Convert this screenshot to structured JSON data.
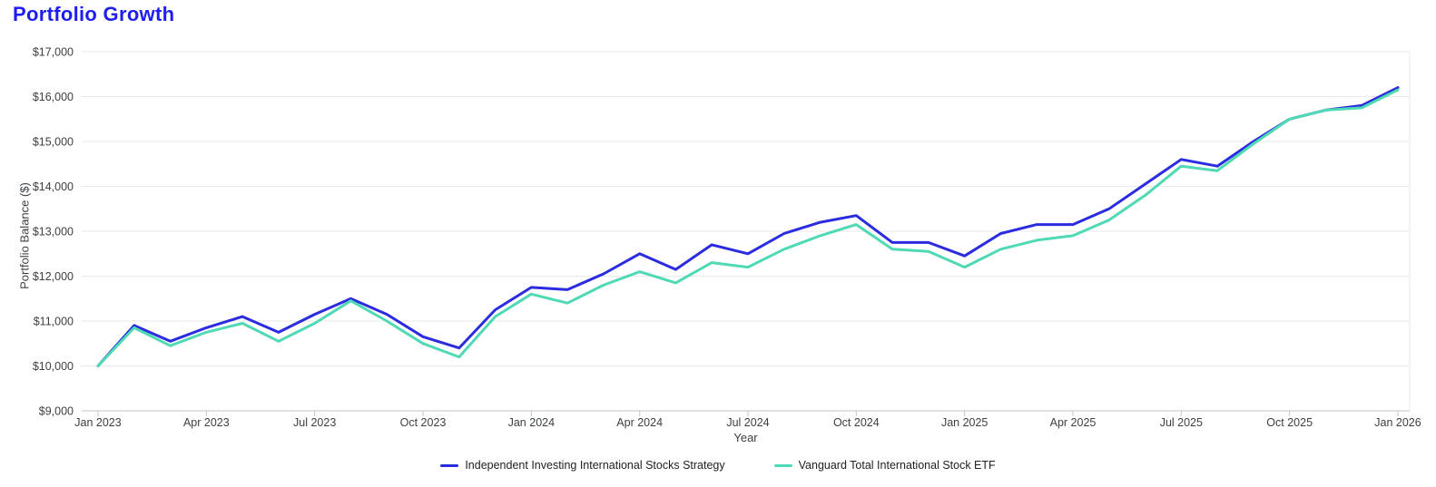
{
  "page": {
    "title": "Portfolio Growth"
  },
  "colors": {
    "title_accent": "#1e1ef2",
    "series_independent": "#2b2bdf",
    "series_vanguard": "#4fd9b5"
  },
  "chart_data": {
    "type": "line",
    "title": "Portfolio Growth",
    "xlabel": "Year",
    "ylabel": "Portfolio Balance ($)",
    "ylim": [
      9000,
      17000
    ],
    "grid": true,
    "legend_position": "bottom",
    "x": [
      "Jan 2023",
      "Feb 2023",
      "Mar 2023",
      "Apr 2023",
      "May 2023",
      "Jun 2023",
      "Jul 2023",
      "Aug 2023",
      "Sep 2023",
      "Oct 2023",
      "Nov 2023",
      "Dec 2023",
      "Jan 2024",
      "Feb 2024",
      "Mar 2024",
      "Apr 2024",
      "May 2024",
      "Jun 2024",
      "Jul 2024",
      "Aug 2024",
      "Sep 2024",
      "Oct 2024",
      "Nov 2024",
      "Dec 2024",
      "Jan 2025",
      "Feb 2025",
      "Mar 2025",
      "Apr 2025",
      "May 2025",
      "Jun 2025",
      "Jul 2025",
      "Aug 2025",
      "Sep 2025",
      "Oct 2025",
      "Nov 2025",
      "Dec 2025",
      "Jan 2026"
    ],
    "x_tick_labels": [
      "Jan 2023",
      "Apr 2023",
      "Jul 2023",
      "Oct 2023",
      "Jan 2024",
      "Apr 2024",
      "Jul 2024",
      "Oct 2024",
      "Jan 2025",
      "Apr 2025",
      "Jul 2025",
      "Oct 2025",
      "Jan 2026"
    ],
    "y_ticks": [
      {
        "value": 9000,
        "label": "$9,000"
      },
      {
        "value": 10000,
        "label": "$10,000"
      },
      {
        "value": 11000,
        "label": "$11,000"
      },
      {
        "value": 12000,
        "label": "$12,000"
      },
      {
        "value": 13000,
        "label": "$13,000"
      },
      {
        "value": 14000,
        "label": "$14,000"
      },
      {
        "value": 15000,
        "label": "$15,000"
      },
      {
        "value": 16000,
        "label": "$16,000"
      },
      {
        "value": 17000,
        "label": "$17,000"
      }
    ],
    "series": [
      {
        "name": "Independent Investing International Stocks Strategy",
        "color": "#2b2bdf",
        "values": [
          10000,
          10900,
          10550,
          10850,
          11100,
          10750,
          11150,
          11500,
          11150,
          10650,
          10400,
          11250,
          11750,
          11700,
          12050,
          12500,
          12150,
          12700,
          12500,
          12950,
          13200,
          13350,
          12750,
          12750,
          12450,
          12950,
          13150,
          13150,
          13500,
          14050,
          14600,
          14450,
          15000,
          15500,
          15700,
          15800,
          16200
        ]
      },
      {
        "name": "Vanguard Total International Stock ETF",
        "color": "#4fd9b5",
        "values": [
          10000,
          10850,
          10450,
          10750,
          10950,
          10550,
          10950,
          11450,
          11000,
          10500,
          10200,
          11100,
          11600,
          11400,
          11800,
          12100,
          11850,
          12300,
          12200,
          12600,
          12900,
          13150,
          12600,
          12550,
          12200,
          12600,
          12800,
          12900,
          13250,
          13800,
          14450,
          14350,
          14950,
          15500,
          15700,
          15750,
          16150
        ]
      }
    ]
  }
}
